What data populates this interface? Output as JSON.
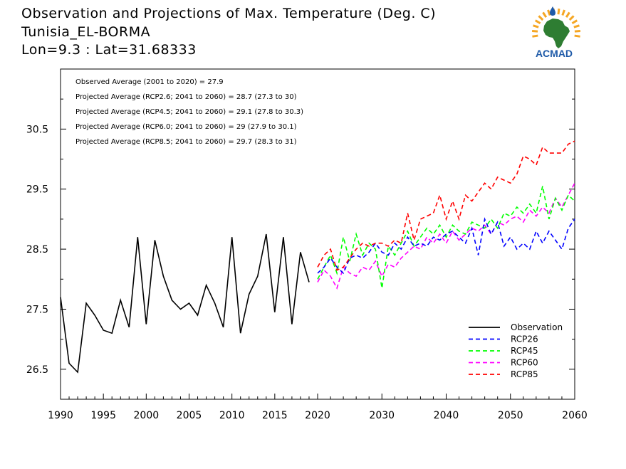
{
  "header": {
    "title": "Observation and Projections of Max. Temperature (Deg. C)",
    "station": "Tunisia_EL-BORMA",
    "coords": "Lon=9.3 : Lat=31.68333"
  },
  "logo": {
    "text": "ACMAD",
    "icon": "africa-map-icon"
  },
  "colors": {
    "observation": "#000000",
    "rcp26": "#0000ff",
    "rcp45": "#00ff00",
    "rcp60": "#ff00ff",
    "rcp85": "#ff0000",
    "logo_text": "#1e5aa8",
    "logo_map": "#2e7d32",
    "logo_sun": "#f5a623"
  },
  "chart_data": {
    "type": "line",
    "title": "",
    "xlabel": "",
    "ylabel": "",
    "xlim": [
      1990,
      2060
    ],
    "ylim": [
      26.0,
      31.5
    ],
    "x_ticks": [
      1990,
      1995,
      2000,
      2005,
      2010,
      2015,
      2020,
      2030,
      2040,
      2050,
      2060
    ],
    "y_ticks": [
      26.5,
      27.5,
      28.5,
      29.5,
      30.5
    ],
    "y_tick_labels": [
      "26.5",
      "27.5",
      "28.5",
      "29.5",
      "30.5"
    ],
    "legend_position": "bottom-right",
    "annotations": [
      "Observed Average (2001 to 2020) = 27.9",
      "Projected Average (RCP2.6; 2041 to 2060) = 28.7 (27.3 to 30)",
      "Projected Average (RCP4.5; 2041 to 2060) = 29.1 (27.8 to 30.3)",
      "Projected Average (RCP6.0; 2041 to 2060) = 29 (27.9 to 30.1)",
      "Projected Average (RCP8.5; 2041 to 2060) = 29.7 (28.3 to 31)"
    ],
    "series": [
      {
        "name": "Observation",
        "style": "solid",
        "x": [
          1990,
          1991,
          1992,
          1993,
          1994,
          1995,
          1996,
          1997,
          1998,
          1999,
          2000,
          2001,
          2002,
          2003,
          2004,
          2005,
          2006,
          2007,
          2008,
          2009,
          2010,
          2011,
          2012,
          2013,
          2014,
          2015,
          2016,
          2017,
          2018,
          2019
        ],
        "values": [
          27.7,
          26.6,
          26.45,
          27.6,
          27.4,
          27.15,
          27.1,
          27.65,
          27.2,
          28.7,
          27.25,
          28.65,
          28.05,
          27.65,
          27.5,
          27.6,
          27.4,
          27.9,
          27.6,
          27.2,
          28.7,
          27.1,
          27.75,
          28.05,
          28.75,
          27.45,
          28.7,
          27.25,
          28.45,
          27.95
        ]
      },
      {
        "name": "RCP26",
        "style": "dashed",
        "x": [
          2020,
          2021,
          2022,
          2023,
          2024,
          2025,
          2026,
          2027,
          2028,
          2029,
          2030,
          2031,
          2032,
          2033,
          2034,
          2035,
          2036,
          2037,
          2038,
          2039,
          2040,
          2041,
          2042,
          2043,
          2044,
          2045,
          2046,
          2047,
          2048,
          2049,
          2050,
          2051,
          2052,
          2053,
          2054,
          2055,
          2056,
          2057,
          2058,
          2059,
          2060
        ],
        "values": [
          28.1,
          28.2,
          28.35,
          28.2,
          28.1,
          28.35,
          28.4,
          28.35,
          28.45,
          28.6,
          28.45,
          28.4,
          28.6,
          28.5,
          28.7,
          28.55,
          28.6,
          28.55,
          28.7,
          28.65,
          28.75,
          28.8,
          28.7,
          28.6,
          28.85,
          28.4,
          29.0,
          28.75,
          28.95,
          28.55,
          28.7,
          28.5,
          28.6,
          28.5,
          28.8,
          28.6,
          28.8,
          28.65,
          28.5,
          28.85,
          29.0
        ]
      },
      {
        "name": "RCP45",
        "style": "dashed",
        "x": [
          2020,
          2021,
          2022,
          2023,
          2024,
          2025,
          2026,
          2027,
          2028,
          2029,
          2030,
          2031,
          2032,
          2033,
          2034,
          2035,
          2036,
          2037,
          2038,
          2039,
          2040,
          2041,
          2042,
          2043,
          2044,
          2045,
          2046,
          2047,
          2048,
          2049,
          2050,
          2051,
          2052,
          2053,
          2054,
          2055,
          2056,
          2057,
          2058,
          2059,
          2060
        ],
        "values": [
          28.0,
          28.2,
          28.4,
          28.1,
          28.7,
          28.3,
          28.75,
          28.4,
          28.6,
          28.5,
          27.85,
          28.55,
          28.4,
          28.6,
          28.8,
          28.55,
          28.7,
          28.85,
          28.75,
          28.9,
          28.7,
          28.9,
          28.8,
          28.75,
          28.95,
          28.9,
          28.85,
          29.0,
          28.85,
          29.1,
          29.05,
          29.2,
          29.1,
          29.25,
          29.1,
          29.55,
          29.0,
          29.35,
          29.15,
          29.4,
          29.3
        ]
      },
      {
        "name": "RCP60",
        "style": "dashed",
        "x": [
          2020,
          2021,
          2022,
          2023,
          2024,
          2025,
          2026,
          2027,
          2028,
          2029,
          2030,
          2031,
          2032,
          2033,
          2034,
          2035,
          2036,
          2037,
          2038,
          2039,
          2040,
          2041,
          2042,
          2043,
          2044,
          2045,
          2046,
          2047,
          2048,
          2049,
          2050,
          2051,
          2052,
          2053,
          2054,
          2055,
          2056,
          2057,
          2058,
          2059,
          2060
        ],
        "values": [
          27.95,
          28.15,
          28.05,
          27.85,
          28.2,
          28.1,
          28.05,
          28.2,
          28.15,
          28.3,
          28.05,
          28.25,
          28.2,
          28.35,
          28.45,
          28.55,
          28.5,
          28.7,
          28.6,
          28.75,
          28.6,
          28.8,
          28.65,
          28.75,
          28.85,
          28.8,
          28.9,
          28.75,
          28.95,
          28.9,
          29.0,
          29.05,
          28.95,
          29.15,
          29.05,
          29.2,
          29.1,
          29.35,
          29.2,
          29.4,
          29.6
        ]
      },
      {
        "name": "RCP85",
        "style": "dashed",
        "x": [
          2020,
          2021,
          2022,
          2023,
          2024,
          2025,
          2026,
          2027,
          2028,
          2029,
          2030,
          2031,
          2032,
          2033,
          2034,
          2035,
          2036,
          2037,
          2038,
          2039,
          2040,
          2041,
          2042,
          2043,
          2044,
          2045,
          2046,
          2047,
          2048,
          2049,
          2050,
          2051,
          2052,
          2053,
          2054,
          2055,
          2056,
          2057,
          2058,
          2059,
          2060
        ],
        "values": [
          28.2,
          28.4,
          28.5,
          28.15,
          28.2,
          28.35,
          28.5,
          28.6,
          28.55,
          28.6,
          28.6,
          28.55,
          28.65,
          28.6,
          29.1,
          28.65,
          29.0,
          29.05,
          29.1,
          29.4,
          29.0,
          29.3,
          29.0,
          29.4,
          29.3,
          29.45,
          29.6,
          29.5,
          29.7,
          29.65,
          29.6,
          29.75,
          30.05,
          30.0,
          29.9,
          30.2,
          30.1,
          30.1,
          30.1,
          30.25,
          30.3
        ]
      }
    ]
  }
}
